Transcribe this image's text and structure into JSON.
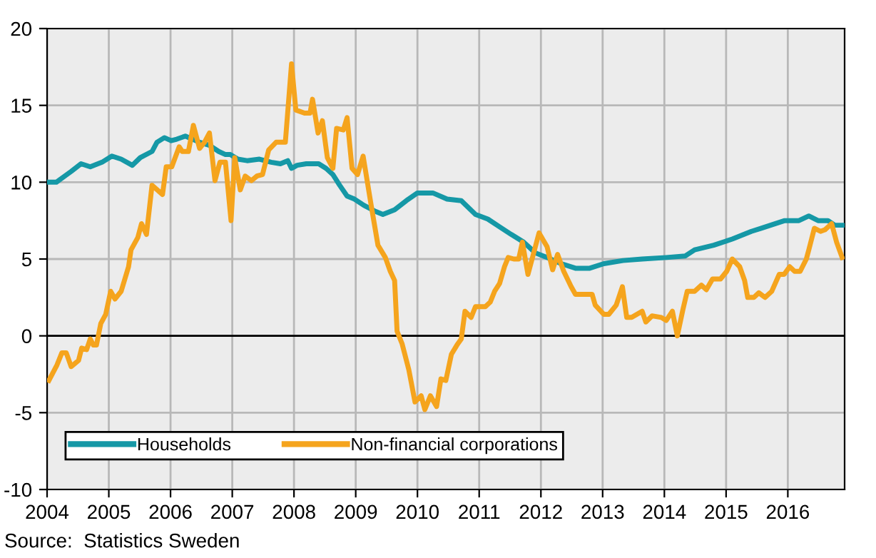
{
  "chart_data": {
    "type": "line",
    "series": [
      {
        "name": "Households",
        "color": "#1598a6",
        "x": [
          2004.0,
          2004.15,
          2004.39,
          2004.55,
          2004.7,
          2004.89,
          2005.05,
          2005.2,
          2005.38,
          2005.51,
          2005.7,
          2005.78,
          2005.9,
          2006.01,
          2006.1,
          2006.24,
          2006.47,
          2006.63,
          2006.78,
          2006.89,
          2006.97,
          2007.09,
          2007.24,
          2007.44,
          2007.63,
          2007.78,
          2007.9,
          2007.96,
          2008.05,
          2008.2,
          2008.4,
          2008.52,
          2008.63,
          2008.74,
          2008.86,
          2008.98,
          2009.13,
          2009.32,
          2009.44,
          2009.63,
          2009.82,
          2010.0,
          2010.25,
          2010.48,
          2010.71,
          2010.94,
          2011.14,
          2011.33,
          2011.52,
          2011.72,
          2011.91,
          2012.1,
          2012.33,
          2012.56,
          2012.79,
          2013.02,
          2013.33,
          2013.64,
          2014.03,
          2014.34,
          2014.49,
          2014.8,
          2015.1,
          2015.41,
          2015.57,
          2015.95,
          2016.18,
          2016.34,
          2016.49,
          2016.65,
          2016.76,
          2016.9
        ],
        "values": [
          10.0,
          10.0,
          10.7,
          11.2,
          11.0,
          11.3,
          11.7,
          11.5,
          11.1,
          11.6,
          12.0,
          12.6,
          12.9,
          12.7,
          12.8,
          13.0,
          12.6,
          12.4,
          12.0,
          11.8,
          11.8,
          11.5,
          11.4,
          11.5,
          11.3,
          11.2,
          11.4,
          10.9,
          11.1,
          11.2,
          11.2,
          10.9,
          10.5,
          9.8,
          9.1,
          8.9,
          8.5,
          8.1,
          7.9,
          8.2,
          8.8,
          9.3,
          9.3,
          8.9,
          8.8,
          7.9,
          7.6,
          7.1,
          6.6,
          6.1,
          5.4,
          5.1,
          4.7,
          4.4,
          4.4,
          4.7,
          4.9,
          5.0,
          5.1,
          5.2,
          5.6,
          5.9,
          6.3,
          6.8,
          7.0,
          7.5,
          7.5,
          7.8,
          7.5,
          7.5,
          7.2,
          7.2
        ]
      },
      {
        "name": "Non-financial corporations",
        "color": "#f5a41d",
        "x": [
          2004.03,
          2004.16,
          2004.24,
          2004.31,
          2004.39,
          2004.51,
          2004.56,
          2004.64,
          2004.7,
          2004.75,
          2004.8,
          2004.87,
          2004.95,
          2005.03,
          2005.1,
          2005.2,
          2005.32,
          2005.36,
          2005.47,
          2005.53,
          2005.61,
          2005.7,
          2005.87,
          2005.93,
          2006.02,
          2006.14,
          2006.19,
          2006.29,
          2006.37,
          2006.47,
          2006.55,
          2006.63,
          2006.72,
          2006.8,
          2006.89,
          2006.98,
          2007.04,
          2007.13,
          2007.21,
          2007.31,
          2007.4,
          2007.49,
          2007.59,
          2007.71,
          2007.86,
          2007.96,
          2008.03,
          2008.17,
          2008.26,
          2008.3,
          2008.39,
          2008.46,
          2008.54,
          2008.63,
          2008.69,
          2008.8,
          2008.86,
          2008.94,
          2009.03,
          2009.12,
          2009.25,
          2009.36,
          2009.48,
          2009.56,
          2009.63,
          2009.67,
          2009.75,
          2009.86,
          2009.96,
          2010.06,
          2010.12,
          2010.21,
          2010.31,
          2010.38,
          2010.46,
          2010.55,
          2010.64,
          2010.71,
          2010.77,
          2010.87,
          2010.94,
          2011.1,
          2011.18,
          2011.25,
          2011.33,
          2011.41,
          2011.47,
          2011.56,
          2011.64,
          2011.7,
          2011.79,
          2011.97,
          2012.1,
          2012.19,
          2012.27,
          2012.37,
          2012.49,
          2012.56,
          2012.83,
          2012.88,
          2013.02,
          2013.1,
          2013.22,
          2013.32,
          2013.39,
          2013.47,
          2013.64,
          2013.7,
          2013.8,
          2013.95,
          2014.03,
          2014.13,
          2014.21,
          2014.3,
          2014.37,
          2014.49,
          2014.6,
          2014.68,
          2014.78,
          2014.91,
          2015.01,
          2015.1,
          2015.22,
          2015.3,
          2015.35,
          2015.45,
          2015.53,
          2015.63,
          2015.74,
          2015.86,
          2015.94,
          2016.03,
          2016.11,
          2016.2,
          2016.3,
          2016.34,
          2016.43,
          2016.53,
          2016.6,
          2016.71,
          2016.79,
          2016.88
        ],
        "values": [
          -2.9,
          -1.9,
          -1.1,
          -1.1,
          -2.0,
          -1.6,
          -0.8,
          -0.9,
          -0.2,
          -0.6,
          -0.6,
          0.8,
          1.4,
          2.9,
          2.4,
          2.9,
          4.5,
          5.6,
          6.4,
          7.3,
          6.6,
          9.8,
          9.2,
          11.0,
          11.0,
          12.3,
          12.0,
          12.0,
          13.7,
          12.2,
          12.6,
          13.2,
          10.1,
          11.3,
          11.3,
          7.5,
          11.6,
          9.5,
          10.4,
          10.1,
          10.4,
          10.5,
          12.1,
          12.6,
          12.6,
          17.7,
          14.7,
          14.5,
          14.5,
          15.4,
          13.2,
          14.0,
          11.6,
          10.9,
          13.5,
          13.4,
          14.2,
          10.9,
          10.5,
          11.7,
          8.5,
          5.9,
          5.1,
          4.2,
          3.6,
          0.3,
          -0.5,
          -2.2,
          -4.3,
          -3.9,
          -4.8,
          -3.9,
          -4.6,
          -2.8,
          -2.9,
          -1.2,
          -0.6,
          -0.2,
          1.6,
          1.2,
          1.9,
          1.9,
          2.2,
          2.9,
          3.4,
          4.5,
          5.1,
          5.0,
          5.0,
          6.1,
          4.0,
          6.7,
          5.8,
          4.3,
          5.3,
          4.2,
          3.2,
          2.7,
          2.7,
          2.0,
          1.4,
          1.4,
          2.0,
          3.2,
          1.2,
          1.2,
          1.6,
          0.9,
          1.3,
          1.2,
          1.0,
          1.6,
          0.0,
          1.7,
          2.9,
          2.9,
          3.3,
          3.0,
          3.7,
          3.7,
          4.2,
          5.0,
          4.5,
          3.6,
          2.5,
          2.5,
          2.8,
          2.5,
          2.9,
          4.0,
          4.0,
          4.5,
          4.2,
          4.2,
          5.0,
          5.6,
          7.0,
          6.8,
          6.9,
          7.3,
          6.1,
          5.1
        ]
      }
    ],
    "xlim": [
      2004.0,
      2016.92
    ],
    "xticks": [
      2004,
      2005,
      2006,
      2007,
      2008,
      2009,
      2010,
      2011,
      2012,
      2013,
      2014,
      2015,
      2016
    ],
    "ylim": [
      -10,
      20
    ],
    "yticks": [
      -10,
      -5,
      0,
      5,
      10,
      15,
      20
    ],
    "grid": true,
    "legend": "bottom left",
    "ref_lines": [
      {
        "axis": "y",
        "value": 0,
        "color": "#000000"
      }
    ],
    "annotations": [
      "Source:  Statistics Sweden"
    ]
  }
}
